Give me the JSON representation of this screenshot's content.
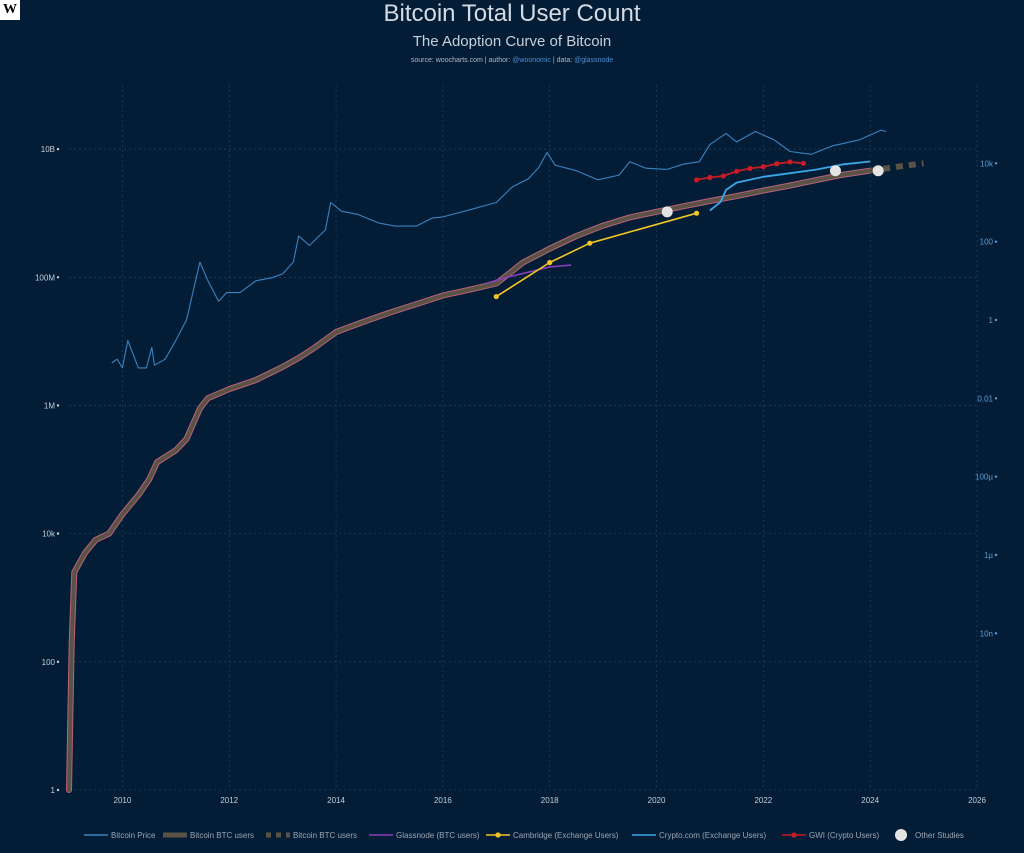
{
  "logo": "W",
  "header": {
    "title": "Bitcoin Total User Count",
    "subtitle": "The Adoption Curve of Bitcoin",
    "source_prefix": "source: woocharts.com | author: ",
    "author": "@woonomic",
    "data_prefix": " | data: ",
    "data_source": "@glassnode"
  },
  "colors": {
    "background": "#041d36",
    "price": "#3b82c0",
    "btc_users": "#5a5245",
    "btc_users_outline": "#b8627a",
    "glassnode": "#8a3fb8",
    "cambridge": "#f2c525",
    "cryptocom": "#3ba6e8",
    "gwi": "#c81d25",
    "other_studies": "#e4e4e4"
  },
  "chart_data": {
    "type": "line",
    "title": "Bitcoin Total User Count",
    "subtitle": "The Adoption Curve of Bitcoin",
    "x_axis": {
      "range": [
        2009,
        2026
      ],
      "ticks": [
        "2010",
        "2012",
        "2014",
        "2016",
        "2018",
        "2020",
        "2022",
        "2024",
        "2026"
      ]
    },
    "y_left": {
      "scale": "log",
      "range": [
        1,
        100000000000
      ],
      "ticks": [
        "1",
        "100",
        "10k",
        "1M",
        "100M",
        "10B"
      ]
    },
    "y_right": {
      "scale": "log",
      "range": [
        1e-12,
        1000000
      ],
      "ticks": [
        "10n",
        "1µ",
        "100µ",
        "0.01",
        "1",
        "100",
        "10k"
      ]
    },
    "grid": true,
    "legend_position": "bottom",
    "series": [
      {
        "name": "Bitcoin Price",
        "axis": "right",
        "style": "thin",
        "x": [
          2009.8,
          2009.9,
          2010.0,
          2010.1,
          2010.3,
          2010.45,
          2010.55,
          2010.6,
          2010.8,
          2011.0,
          2011.2,
          2011.45,
          2011.6,
          2011.8,
          2011.95,
          2012.2,
          2012.5,
          2012.8,
          2013.0,
          2013.2,
          2013.3,
          2013.5,
          2013.8,
          2013.9,
          2014.1,
          2014.4,
          2014.8,
          2015.1,
          2015.5,
          2015.8,
          2016.0,
          2016.5,
          2017.0,
          2017.3,
          2017.6,
          2017.8,
          2017.95,
          2018.1,
          2018.5,
          2018.9,
          2019.3,
          2019.5,
          2019.8,
          2020.2,
          2020.5,
          2020.8,
          2021.0,
          2021.3,
          2021.5,
          2021.85,
          2022.2,
          2022.5,
          2022.9,
          2023.3,
          2023.8,
          2024.2,
          2024.3
        ],
        "y": [
          0.08,
          0.1,
          0.06,
          0.3,
          0.06,
          0.06,
          0.2,
          0.07,
          0.1,
          0.3,
          1,
          30,
          10,
          3,
          5,
          5,
          10,
          12,
          15,
          30,
          140,
          80,
          200,
          1000,
          600,
          500,
          300,
          250,
          250,
          400,
          430,
          650,
          1000,
          2500,
          4000,
          8000,
          19000,
          9000,
          6500,
          3800,
          5000,
          11000,
          7500,
          7000,
          9500,
          11000,
          30000,
          58000,
          35000,
          65000,
          40000,
          20000,
          17000,
          28000,
          40000,
          70000,
          65000
        ]
      },
      {
        "name": "Bitcoin BTC users",
        "axis": "left",
        "style": "thick",
        "x": [
          2009.0,
          2009.05,
          2009.1,
          2009.3,
          2009.5,
          2009.75,
          2010.0,
          2010.3,
          2010.5,
          2010.65,
          2011.0,
          2011.2,
          2011.45,
          2011.6,
          2012.0,
          2012.5,
          2013.0,
          2013.3,
          2013.6,
          2014.0,
          2014.5,
          2015.0,
          2015.5,
          2016.0,
          2016.5,
          2017.0,
          2017.5,
          2018.0,
          2018.5,
          2019.0,
          2019.5,
          2020.0,
          2020.5,
          2021.0,
          2021.5,
          2022.0,
          2022.5,
          2023.0,
          2023.5,
          2024.0
        ],
        "y": [
          1,
          200,
          2500,
          5000,
          8000,
          10000,
          20000,
          40000,
          70000,
          130000,
          200000,
          300000,
          900000,
          1300000,
          1800000,
          2500000,
          4000000,
          5500000,
          8000000,
          14000000,
          20000000,
          28000000,
          38000000,
          52000000,
          64000000,
          80000000,
          170000000,
          280000000,
          440000000,
          640000000,
          860000000,
          1050000000,
          1280000000,
          1550000000,
          1850000000,
          2250000000,
          2700000000,
          3300000000,
          4000000000,
          4600000000
        ]
      },
      {
        "name": "Bitcoin BTC users",
        "axis": "left",
        "style": "dashed",
        "x": [
          2024.0,
          2024.5,
          2025.0
        ],
        "y": [
          4600000000,
          5300000000,
          6000000000
        ]
      },
      {
        "name": "Glassnode (BTC users)",
        "axis": "left",
        "style": "thin",
        "x": [
          2016.8,
          2017.2,
          2017.6,
          2018.0,
          2018.4
        ],
        "y": [
          80000000,
          100000000,
          120000000,
          145000000,
          155000000
        ]
      },
      {
        "name": "Cambridge (Exchange Users)",
        "axis": "left",
        "style": "markers",
        "x": [
          2017.0,
          2018.0,
          2018.75,
          2020.75
        ],
        "y": [
          50000000,
          170000000,
          340000000,
          1000000000
        ]
      },
      {
        "name": "Crypto.com (Exchange Users)",
        "axis": "left",
        "style": "thin",
        "x": [
          2021.0,
          2021.2,
          2021.3,
          2021.5,
          2022.0,
          2022.5,
          2023.0,
          2023.5,
          2024.0
        ],
        "y": [
          1100000000,
          1500000000,
          2300000000,
          3000000000,
          3700000000,
          4200000000,
          4800000000,
          5800000000,
          6400000000
        ]
      },
      {
        "name": "GWI (Crypto Users)",
        "axis": "left",
        "style": "markers",
        "x": [
          2020.75,
          2021.0,
          2021.25,
          2021.5,
          2021.75,
          2022.0,
          2022.25,
          2022.5,
          2022.75
        ],
        "y": [
          3300000000,
          3600000000,
          3800000000,
          4500000000,
          5000000000,
          5300000000,
          5900000000,
          6300000000,
          6000000000
        ]
      },
      {
        "name": "Other Studies",
        "axis": "left",
        "style": "dots",
        "x": [
          2020.2,
          2023.35,
          2024.15
        ],
        "y": [
          1050000000,
          4600000000,
          4600000000
        ]
      }
    ]
  }
}
